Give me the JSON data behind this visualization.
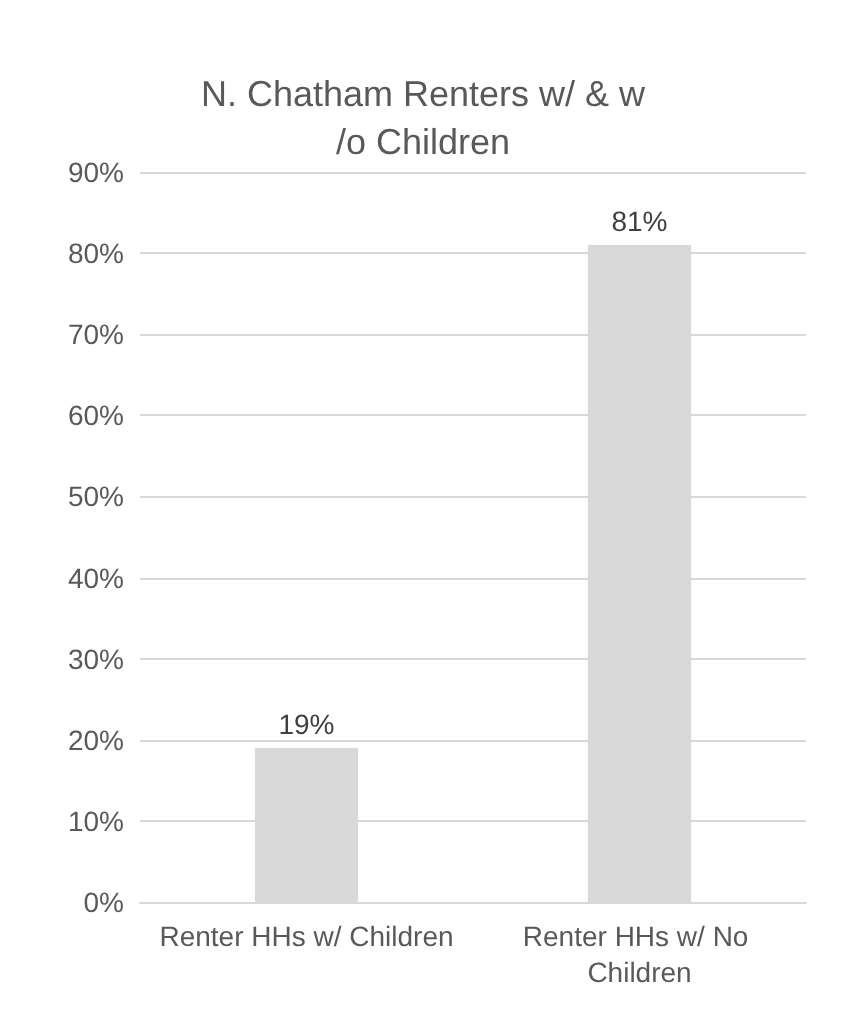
{
  "chart_data": {
    "type": "bar",
    "title": "N. Chatham Renters w/ & w/o Children",
    "categories": [
      "Renter HHs w/ Children",
      "Renter HHs w/ No Children"
    ],
    "values": [
      19,
      81
    ],
    "value_labels": [
      "19%",
      "81%"
    ],
    "color": "#d9d9d9",
    "ylim": [
      0,
      90
    ],
    "yticks": [
      {
        "value": 0,
        "label": "0%"
      },
      {
        "value": 10,
        "label": "10%"
      },
      {
        "value": 20,
        "label": "20%"
      },
      {
        "value": 30,
        "label": "30%"
      },
      {
        "value": 40,
        "label": "40%"
      },
      {
        "value": 50,
        "label": "50%"
      },
      {
        "value": 60,
        "label": "60%"
      },
      {
        "value": 70,
        "label": "70%"
      },
      {
        "value": 80,
        "label": "80%"
      },
      {
        "value": 90,
        "label": "90%"
      }
    ],
    "grid": "y"
  }
}
